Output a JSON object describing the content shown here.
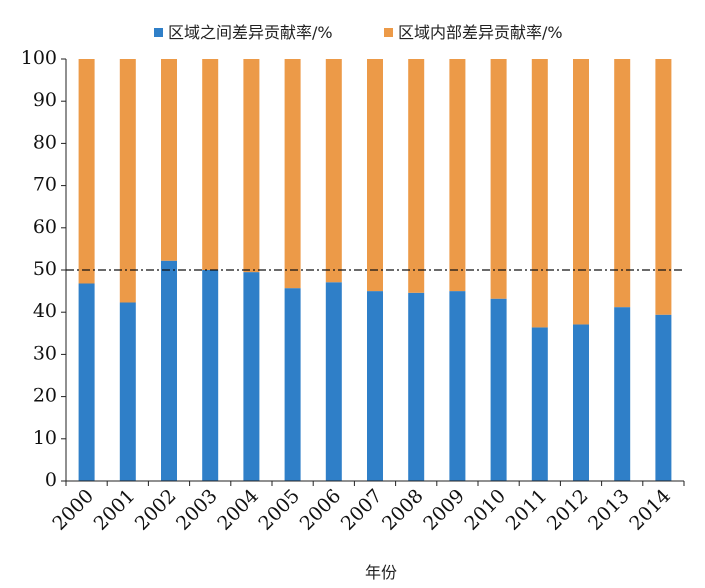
{
  "chart_data": {
    "type": "bar",
    "stacked": true,
    "categories": [
      "2000",
      "2001",
      "2002",
      "2003",
      "2004",
      "2005",
      "2006",
      "2007",
      "2008",
      "2009",
      "2010",
      "2011",
      "2012",
      "2013",
      "2014"
    ],
    "series": [
      {
        "name": "区域之间差异贡献率/%",
        "color": "#2f7fc8",
        "values": [
          46.8,
          42.3,
          52.2,
          50.0,
          49.5,
          45.7,
          47.1,
          45.0,
          44.6,
          45.0,
          43.2,
          36.4,
          37.1,
          41.2,
          39.4
        ]
      },
      {
        "name": "区域内部差异贡献率/%",
        "color": "#ec9a48",
        "values": [
          53.2,
          57.7,
          47.8,
          50.0,
          50.5,
          54.3,
          52.9,
          55.0,
          55.4,
          55.0,
          56.8,
          63.6,
          62.9,
          58.8,
          60.6
        ]
      }
    ],
    "ylim": [
      0,
      100
    ],
    "yticks": [
      "0",
      "10",
      "20",
      "30",
      "40",
      "50",
      "60",
      "70",
      "80",
      "90",
      "100"
    ],
    "reference_line": 50,
    "xlabel": "年份",
    "ylabel": "",
    "legend_position": "top-center",
    "grid": false
  }
}
